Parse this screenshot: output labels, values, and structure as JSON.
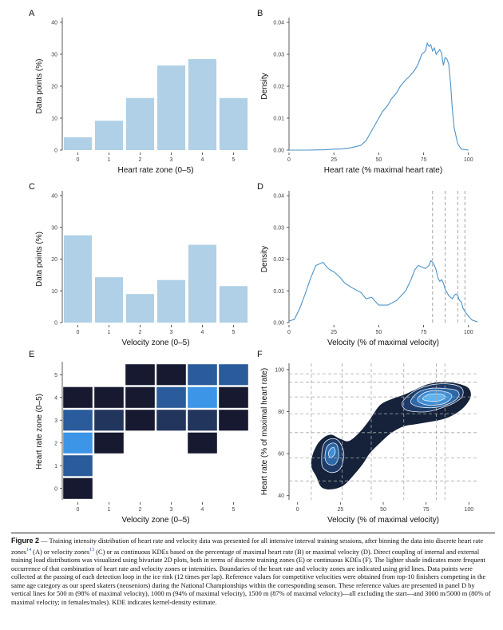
{
  "chart_data": [
    {
      "id": "A",
      "type": "bar",
      "xlabel": "Heart rate zone (0–5)",
      "ylabel": "Data points (%)",
      "categories": [
        "0",
        "1",
        "2",
        "3",
        "4",
        "5"
      ],
      "values": [
        4,
        9.2,
        16.3,
        26.5,
        28.5,
        16.3
      ],
      "ylim": [
        0,
        40
      ],
      "yticks": [
        0,
        10,
        20,
        30,
        40
      ],
      "color": "#afd0e6"
    },
    {
      "id": "B",
      "type": "line",
      "xlabel": "Heart rate (% maximal heart rate)",
      "ylabel": "Density",
      "xlim": [
        0,
        105
      ],
      "ylim": [
        0,
        0.04
      ],
      "xticks": [
        0,
        25,
        50,
        75,
        100
      ],
      "yticks": [
        0,
        0.01,
        0.02,
        0.03,
        0.04
      ],
      "ytick_labels": [
        "0.00",
        "0.01",
        "0.02",
        "0.03",
        "0.04"
      ],
      "color": "#4c93c8",
      "x": [
        0,
        10,
        20,
        25,
        30,
        35,
        40,
        43,
        45,
        47,
        50,
        52,
        55,
        57,
        60,
        62,
        65,
        67,
        70,
        72,
        74,
        76,
        77,
        78,
        79,
        80,
        81,
        82,
        84,
        85,
        86,
        87,
        88,
        89,
        90,
        91,
        92,
        94,
        96,
        100
      ],
      "y": [
        0,
        0,
        0.0001,
        0.0003,
        0.0004,
        0.0008,
        0.0015,
        0.003,
        0.005,
        0.007,
        0.01,
        0.012,
        0.014,
        0.016,
        0.018,
        0.02,
        0.022,
        0.023,
        0.025,
        0.027,
        0.03,
        0.031,
        0.0335,
        0.0325,
        0.033,
        0.031,
        0.032,
        0.03,
        0.0315,
        0.0305,
        0.0265,
        0.029,
        0.0285,
        0.027,
        0.021,
        0.013,
        0.007,
        0.002,
        0.0003,
        0
      ]
    },
    {
      "id": "C",
      "type": "bar",
      "xlabel": "Velocity zone (0–5)",
      "ylabel": "Data points (%)",
      "categories": [
        "0",
        "1",
        "2",
        "3",
        "4",
        "5"
      ],
      "values": [
        27.5,
        14.3,
        9,
        13.4,
        24.5,
        11.5
      ],
      "ylim": [
        0,
        40
      ],
      "yticks": [
        0,
        10,
        20,
        30,
        40
      ],
      "color": "#afd0e6"
    },
    {
      "id": "D",
      "type": "line",
      "xlabel": "Velocity (% of maximal velocity)",
      "ylabel": "Density",
      "xlim": [
        0,
        105
      ],
      "ylim": [
        0,
        0.04
      ],
      "xticks": [
        0,
        25,
        50,
        75,
        100
      ],
      "yticks": [
        0,
        0.01,
        0.02,
        0.03,
        0.04
      ],
      "ytick_labels": [
        "0.00",
        "0.01",
        "0.02",
        "0.03",
        "0.04"
      ],
      "color": "#4c93c8",
      "x": [
        0,
        3,
        6,
        9,
        12,
        15,
        17,
        19,
        21,
        23,
        25,
        28,
        31,
        35,
        40,
        43,
        46,
        50,
        55,
        60,
        65,
        68,
        70,
        72,
        74,
        76,
        78,
        79,
        80,
        81,
        82,
        83,
        84,
        85,
        86,
        87,
        88,
        89,
        90,
        91,
        92,
        93,
        94,
        95,
        96,
        97,
        98,
        100,
        102,
        105
      ],
      "y": [
        0.0005,
        0.001,
        0.0045,
        0.009,
        0.014,
        0.018,
        0.0185,
        0.019,
        0.0175,
        0.0165,
        0.016,
        0.0145,
        0.0125,
        0.011,
        0.0095,
        0.0075,
        0.008,
        0.0055,
        0.0055,
        0.007,
        0.01,
        0.0135,
        0.0165,
        0.018,
        0.0175,
        0.017,
        0.018,
        0.0195,
        0.019,
        0.018,
        0.0165,
        0.014,
        0.013,
        0.0135,
        0.0125,
        0.0105,
        0.0095,
        0.0085,
        0.008,
        0.0075,
        0.0085,
        0.009,
        0.0085,
        0.007,
        0.0065,
        0.0045,
        0.0035,
        0.002,
        0.0008,
        0.0002
      ],
      "reference_lines": [
        80,
        87,
        94,
        98
      ]
    },
    {
      "id": "E",
      "type": "heatmap",
      "xlabel": "Velocity zone (0–5)",
      "ylabel": "Heart rate zone (0–5)",
      "x_categories": [
        "0",
        "1",
        "2",
        "3",
        "4",
        "5"
      ],
      "y_categories": [
        "0",
        "1",
        "2",
        "3",
        "4",
        "5"
      ],
      "cells": [
        {
          "x": 0,
          "y": 0,
          "color": "#16192f"
        },
        {
          "x": 0,
          "y": 1,
          "color": "#2a5b9a"
        },
        {
          "x": 0,
          "y": 2,
          "color": "#3c95e6"
        },
        {
          "x": 0,
          "y": 3,
          "color": "#2a5b9a"
        },
        {
          "x": 0,
          "y": 4,
          "color": "#16192f"
        },
        {
          "x": 1,
          "y": 2,
          "color": "#16192f"
        },
        {
          "x": 1,
          "y": 3,
          "color": "#22355d"
        },
        {
          "x": 1,
          "y": 4,
          "color": "#16192f"
        },
        {
          "x": 2,
          "y": 3,
          "color": "#16192f"
        },
        {
          "x": 2,
          "y": 4,
          "color": "#16192f"
        },
        {
          "x": 2,
          "y": 5,
          "color": "#16192f"
        },
        {
          "x": 3,
          "y": 3,
          "color": "#22355d"
        },
        {
          "x": 3,
          "y": 4,
          "color": "#2a5b9a"
        },
        {
          "x": 3,
          "y": 5,
          "color": "#16192f"
        },
        {
          "x": 4,
          "y": 2,
          "color": "#16192f"
        },
        {
          "x": 4,
          "y": 3,
          "color": "#22355d"
        },
        {
          "x": 4,
          "y": 4,
          "color": "#3c95e6"
        },
        {
          "x": 4,
          "y": 5,
          "color": "#2a5b9a"
        },
        {
          "x": 5,
          "y": 3,
          "color": "#16192f"
        },
        {
          "x": 5,
          "y": 4,
          "color": "#16192f"
        },
        {
          "x": 5,
          "y": 5,
          "color": "#2a5b9a"
        }
      ]
    },
    {
      "id": "F",
      "type": "contour",
      "xlabel": "Velocity (% of maximal velocity)",
      "ylabel": "Heart rate (% of maximal heart rate)",
      "xlim": [
        -5,
        105
      ],
      "ylim": [
        38,
        103
      ],
      "xticks": [
        0,
        25,
        50,
        75,
        100
      ],
      "yticks": [
        40,
        60,
        80,
        100
      ],
      "grid_x": [
        8,
        26,
        43,
        62,
        81,
        86
      ],
      "grid_y": [
        47,
        58,
        70,
        79,
        87,
        94,
        98
      ],
      "level_colors": [
        "#15223a",
        "#1f3c68",
        "#2e68a6",
        "#3f8fd6",
        "#5ab4f3"
      ],
      "outer": [
        [
          11,
          49
        ],
        [
          8,
          54
        ],
        [
          9,
          60
        ],
        [
          13,
          66
        ],
        [
          19,
          69
        ],
        [
          25,
          67
        ],
        [
          30,
          66
        ],
        [
          36,
          70
        ],
        [
          42,
          76
        ],
        [
          48,
          83
        ],
        [
          55,
          86
        ],
        [
          62,
          88
        ],
        [
          70,
          91
        ],
        [
          76,
          93
        ],
        [
          82,
          94
        ],
        [
          88,
          94
        ],
        [
          95,
          93
        ],
        [
          100,
          91
        ],
        [
          101,
          87
        ],
        [
          97,
          82
        ],
        [
          90,
          78
        ],
        [
          83,
          76
        ],
        [
          76,
          75
        ],
        [
          69,
          74
        ],
        [
          62,
          73
        ],
        [
          55,
          70
        ],
        [
          48,
          65
        ],
        [
          42,
          60
        ],
        [
          38,
          55
        ],
        [
          33,
          50
        ],
        [
          27,
          45
        ],
        [
          20,
          43
        ],
        [
          14,
          44
        ]
      ],
      "level2a": [
        [
          14,
          57
        ],
        [
          15,
          64
        ],
        [
          19,
          67
        ],
        [
          24,
          66
        ],
        [
          27,
          60
        ],
        [
          25,
          53
        ],
        [
          20,
          51
        ],
        [
          15,
          53
        ]
      ],
      "level2b": [
        [
          61,
          84
        ],
        [
          65,
          88
        ],
        [
          71,
          91
        ],
        [
          80,
          93
        ],
        [
          90,
          93
        ],
        [
          96,
          91
        ],
        [
          96,
          87
        ],
        [
          91,
          84
        ],
        [
          85,
          82
        ],
        [
          76,
          80
        ],
        [
          68,
          80
        ],
        [
          63,
          81
        ]
      ],
      "level3a": [
        [
          16,
          58
        ],
        [
          17,
          63
        ],
        [
          20,
          65
        ],
        [
          23,
          64
        ],
        [
          24,
          59
        ],
        [
          22,
          55
        ],
        [
          18,
          55
        ]
      ],
      "level3b": [
        [
          66,
          85
        ],
        [
          70,
          89
        ],
        [
          77,
          91
        ],
        [
          86,
          91
        ],
        [
          93,
          90
        ],
        [
          94,
          87
        ],
        [
          89,
          84
        ],
        [
          81,
          82
        ],
        [
          73,
          82
        ],
        [
          68,
          83
        ]
      ],
      "level4a": [
        [
          18,
          60
        ],
        [
          19,
          62
        ],
        [
          21,
          63
        ],
        [
          22,
          61
        ],
        [
          21,
          59
        ],
        [
          19,
          58
        ]
      ],
      "level4b": [
        [
          70,
          86
        ],
        [
          74,
          89
        ],
        [
          81,
          90
        ],
        [
          88,
          89
        ],
        [
          90,
          87
        ],
        [
          86,
          84
        ],
        [
          78,
          83
        ],
        [
          72,
          84
        ]
      ],
      "level5": [
        [
          73,
          86
        ],
        [
          76,
          88
        ],
        [
          81,
          88.5
        ],
        [
          85,
          88
        ],
        [
          86,
          86.5
        ],
        [
          82,
          85
        ],
        [
          77,
          85
        ]
      ]
    }
  ],
  "caption": {
    "fig_label": "Figure 2",
    "dash": "—",
    "s1": "Training intensity distribution of heart rate and velocity data was presented for all intensive interval training sessions, after binning the data into discrete heart rate zones",
    "ref1": "14",
    "s2": "(A) or velocity zones",
    "ref2": "13",
    "s3": "(C) or as continuous KDEs based on the percentage of maximal heart rate (B) or maximal velocity (D). Direct coupling of internal and external training load distributions was visualized using bivariate 2D plots, both in terms of discrete training zones (E) or continuous KDEs (F). The lighter shade indicates more frequent occurrence of that combination of heart rate and velocity zones or intensities. Boundaries of the heart rate and velocity zones are indicated using grid lines. Data points were collected at the passing of each detection loop in the ice rink (12 times per lap). Reference values for competitive velocities were obtained from top-10 finishers competing in the same age category as our speed skaters (neoseniors) during the National Championships within the corresponding season. These reference values are presented in panel D by vertical lines for 500 m (98% of maximal velocity), 1000 m (94% of maximal velocity), 1500 m (87% of maximal velocity)—all excluding the start—and 3000 m/5000 m (80% of maximal velocity; in females/males). KDE indicates kernel-density estimate."
  }
}
